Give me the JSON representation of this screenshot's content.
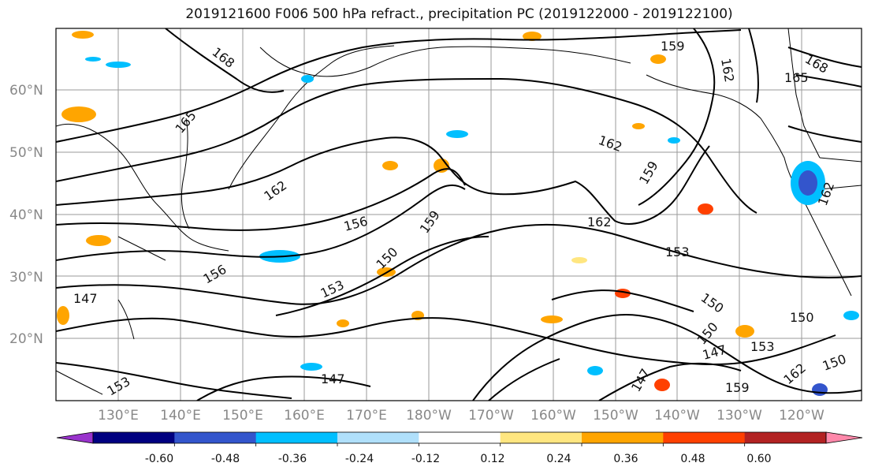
{
  "title": "2019121600 F006 500 hPa refract., precipitation PC (2019122000 - 2019122100)",
  "lat_labels": [
    "60°N",
    "50°N",
    "40°N",
    "30°N",
    "20°N"
  ],
  "lon_labels": [
    "130°E",
    "140°E",
    "150°E",
    "160°E",
    "170°E",
    "180°W",
    "170°W",
    "160°W",
    "150°W",
    "140°W",
    "130°W",
    "120°W"
  ],
  "contour_labels": [
    "168",
    "165",
    "162",
    "159",
    "156",
    "153",
    "150",
    "147",
    "168",
    "165",
    "162",
    "159",
    "162",
    "159",
    "162",
    "156",
    "153",
    "150",
    "147",
    "150",
    "153",
    "150",
    "147",
    "159",
    "162",
    "153",
    "150",
    "147",
    "162"
  ],
  "colorbar": {
    "ticks": [
      "-0.60",
      "-0.48",
      "-0.36",
      "-0.24",
      "-0.12",
      "0.12",
      "0.24",
      "0.36",
      "0.48",
      "0.60"
    ],
    "colors": [
      "#9933cc",
      "#000080",
      "#3355cc",
      "#00bfff",
      "#b0e0fb",
      "#ffffff",
      "#ffe680",
      "#ffa500",
      "#ff4000",
      "#b22222",
      "#ff88aa"
    ]
  }
}
